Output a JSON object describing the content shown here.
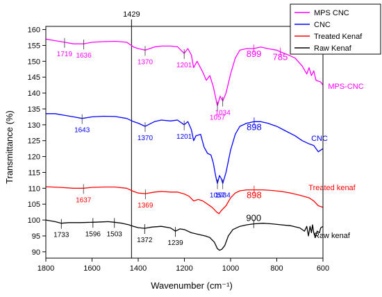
{
  "chart_data": {
    "type": "line",
    "xlabel": "Wavenumber (cm⁻¹)",
    "ylabel": "Transmittance (%)",
    "xlim": [
      1800,
      600
    ],
    "ylim": [
      88,
      161
    ],
    "x_ticks": [
      1800,
      1600,
      1400,
      1200,
      1000,
      800,
      600
    ],
    "y_ticks": [
      90,
      95,
      100,
      105,
      110,
      115,
      120,
      125,
      130,
      135,
      140,
      145,
      150,
      155,
      160
    ],
    "vline": {
      "x": 1429,
      "label": "1429"
    },
    "legend": {
      "placement": "top-right",
      "entries": [
        {
          "name": "MPS CNC",
          "color": "#ff00ff"
        },
        {
          "name": "CNC",
          "color": "#0000ff"
        },
        {
          "name": "Treated Kenaf",
          "color": "#ff0000"
        },
        {
          "name": "Raw Kenaf",
          "color": "#000000"
        }
      ]
    },
    "series": [
      {
        "name": "MPS CNC",
        "color": "#ff00ff",
        "points": [
          [
            1800,
            157
          ],
          [
            1760,
            156.5
          ],
          [
            1719,
            156
          ],
          [
            1680,
            155.5
          ],
          [
            1636,
            155.5
          ],
          [
            1600,
            156
          ],
          [
            1550,
            156.2
          ],
          [
            1500,
            156.3
          ],
          [
            1450,
            156
          ],
          [
            1420,
            154.5
          ],
          [
            1400,
            154
          ],
          [
            1370,
            153.5
          ],
          [
            1330,
            154.5
          ],
          [
            1300,
            154.8
          ],
          [
            1260,
            154.8
          ],
          [
            1230,
            154.6
          ],
          [
            1201,
            152.5
          ],
          [
            1185,
            154
          ],
          [
            1170,
            152
          ],
          [
            1160,
            148
          ],
          [
            1145,
            150
          ],
          [
            1120,
            146.5
          ],
          [
            1105,
            144
          ],
          [
            1090,
            145.5
          ],
          [
            1075,
            142
          ],
          [
            1057,
            136
          ],
          [
            1045,
            139
          ],
          [
            1034,
            137.5
          ],
          [
            1020,
            140
          ],
          [
            1000,
            146
          ],
          [
            980,
            151
          ],
          [
            960,
            153.5
          ],
          [
            930,
            154
          ],
          [
            899,
            154
          ],
          [
            870,
            154.5
          ],
          [
            840,
            154
          ],
          [
            800,
            153.5
          ],
          [
            785,
            153
          ],
          [
            750,
            152
          ],
          [
            720,
            151
          ],
          [
            690,
            148.5
          ],
          [
            670,
            146
          ],
          [
            660,
            148
          ],
          [
            650,
            145.5
          ],
          [
            640,
            147
          ],
          [
            630,
            144
          ],
          [
            610,
            143.5
          ],
          [
            600,
            142.5
          ]
        ]
      },
      {
        "name": "CNC",
        "color": "#0000ff",
        "points": [
          [
            1800,
            133.5
          ],
          [
            1760,
            133.5
          ],
          [
            1720,
            133
          ],
          [
            1680,
            132.5
          ],
          [
            1643,
            132
          ],
          [
            1600,
            132.5
          ],
          [
            1550,
            132.7
          ],
          [
            1500,
            132.6
          ],
          [
            1450,
            132
          ],
          [
            1420,
            131
          ],
          [
            1400,
            130.5
          ],
          [
            1370,
            129.5
          ],
          [
            1330,
            131
          ],
          [
            1300,
            131.5
          ],
          [
            1260,
            131.2
          ],
          [
            1230,
            131.5
          ],
          [
            1201,
            130
          ],
          [
            1185,
            131
          ],
          [
            1170,
            128.5
          ],
          [
            1160,
            125
          ],
          [
            1150,
            126.5
          ],
          [
            1130,
            127
          ],
          [
            1115,
            123
          ],
          [
            1100,
            121
          ],
          [
            1085,
            120.5
          ],
          [
            1075,
            118
          ],
          [
            1065,
            114
          ],
          [
            1057,
            111.5
          ],
          [
            1048,
            114
          ],
          [
            1040,
            113
          ],
          [
            1034,
            111.5
          ],
          [
            1020,
            115
          ],
          [
            1000,
            122
          ],
          [
            980,
            127
          ],
          [
            960,
            129.5
          ],
          [
            930,
            130.5
          ],
          [
            898,
            131
          ],
          [
            870,
            131
          ],
          [
            840,
            130.5
          ],
          [
            800,
            129.5
          ],
          [
            760,
            128
          ],
          [
            720,
            126.5
          ],
          [
            690,
            125
          ],
          [
            660,
            124
          ],
          [
            640,
            123.5
          ],
          [
            620,
            121.5
          ],
          [
            600,
            122.5
          ]
        ]
      },
      {
        "name": "Treated Kenaf",
        "color": "#ff0000",
        "points": [
          [
            1800,
            110.5
          ],
          [
            1740,
            110.3
          ],
          [
            1680,
            110
          ],
          [
            1637,
            110
          ],
          [
            1600,
            110.3
          ],
          [
            1550,
            110.4
          ],
          [
            1500,
            110.4
          ],
          [
            1450,
            110
          ],
          [
            1420,
            109
          ],
          [
            1400,
            108.5
          ],
          [
            1369,
            108.3
          ],
          [
            1330,
            108.8
          ],
          [
            1300,
            109
          ],
          [
            1260,
            108.8
          ],
          [
            1230,
            108.8
          ],
          [
            1200,
            108.2
          ],
          [
            1180,
            107.5
          ],
          [
            1160,
            106
          ],
          [
            1140,
            106.5
          ],
          [
            1120,
            106
          ],
          [
            1100,
            105
          ],
          [
            1080,
            104
          ],
          [
            1060,
            102.5
          ],
          [
            1050,
            102
          ],
          [
            1040,
            103
          ],
          [
            1020,
            104.5
          ],
          [
            1000,
            107
          ],
          [
            980,
            108.5
          ],
          [
            960,
            109.2
          ],
          [
            930,
            109.5
          ],
          [
            898,
            109.5
          ],
          [
            860,
            109.5
          ],
          [
            820,
            109.3
          ],
          [
            780,
            109
          ],
          [
            740,
            108.5
          ],
          [
            700,
            107.8
          ],
          [
            660,
            107
          ],
          [
            640,
            106
          ],
          [
            620,
            104.5
          ],
          [
            600,
            104
          ]
        ]
      },
      {
        "name": "Raw Kenaf",
        "color": "#000000",
        "points": [
          [
            1800,
            100
          ],
          [
            1760,
            99.5
          ],
          [
            1733,
            99
          ],
          [
            1700,
            99.2
          ],
          [
            1650,
            99.2
          ],
          [
            1596,
            99.3
          ],
          [
            1560,
            99.4
          ],
          [
            1530,
            99.5
          ],
          [
            1503,
            99.3
          ],
          [
            1470,
            99
          ],
          [
            1440,
            98.5
          ],
          [
            1420,
            98
          ],
          [
            1400,
            97.6
          ],
          [
            1372,
            97.4
          ],
          [
            1340,
            97.8
          ],
          [
            1300,
            98
          ],
          [
            1260,
            97.5
          ],
          [
            1239,
            96.5
          ],
          [
            1220,
            97.2
          ],
          [
            1200,
            97
          ],
          [
            1170,
            96
          ],
          [
            1140,
            95.5
          ],
          [
            1110,
            95
          ],
          [
            1090,
            94.5
          ],
          [
            1070,
            93
          ],
          [
            1057,
            91
          ],
          [
            1048,
            90.5
          ],
          [
            1038,
            90.8
          ],
          [
            1025,
            92
          ],
          [
            1010,
            95
          ],
          [
            990,
            97
          ],
          [
            960,
            98
          ],
          [
            930,
            98.5
          ],
          [
            900,
            98.8
          ],
          [
            860,
            99
          ],
          [
            820,
            98.8
          ],
          [
            780,
            98.5
          ],
          [
            740,
            98.2
          ],
          [
            700,
            97.5
          ],
          [
            680,
            96.5
          ],
          [
            670,
            98
          ],
          [
            663,
            95
          ],
          [
            656,
            98
          ],
          [
            650,
            96
          ],
          [
            645,
            98.5
          ],
          [
            640,
            96
          ],
          [
            633,
            94.5
          ],
          [
            625,
            96.5
          ],
          [
            615,
            96
          ],
          [
            610,
            97.5
          ],
          [
            600,
            98
          ]
        ]
      }
    ],
    "annotations": [
      {
        "text": "1719",
        "x": 1719,
        "y": 156,
        "series": "MPS CNC",
        "style": "small"
      },
      {
        "text": "1636",
        "x": 1636,
        "y": 155.5,
        "series": "MPS CNC",
        "style": "small"
      },
      {
        "text": "1370",
        "x": 1370,
        "y": 153.5,
        "series": "MPS CNC",
        "style": "small"
      },
      {
        "text": "1201",
        "x": 1201,
        "y": 152.5,
        "series": "MPS CNC",
        "style": "small"
      },
      {
        "text": "1057",
        "x": 1057,
        "y": 136,
        "series": "MPS CNC",
        "style": "small"
      },
      {
        "text": "1034",
        "x": 1034,
        "y": 137.5,
        "series": "MPS CNC",
        "style": "small"
      },
      {
        "text": "899",
        "x": 899,
        "y": 154,
        "series": "MPS CNC",
        "style": "big"
      },
      {
        "text": "785",
        "x": 785,
        "y": 153,
        "series": "MPS CNC",
        "style": "big"
      },
      {
        "text": "1643",
        "x": 1643,
        "y": 132,
        "series": "CNC",
        "style": "small"
      },
      {
        "text": "1370",
        "x": 1370,
        "y": 129.5,
        "series": "CNC",
        "style": "small"
      },
      {
        "text": "1201",
        "x": 1201,
        "y": 130,
        "series": "CNC",
        "style": "small"
      },
      {
        "text": "1057",
        "x": 1057,
        "y": 111.5,
        "series": "CNC",
        "style": "small"
      },
      {
        "text": "1034",
        "x": 1034,
        "y": 111.5,
        "series": "CNC",
        "style": "small"
      },
      {
        "text": "898",
        "x": 898,
        "y": 131,
        "series": "CNC",
        "style": "big"
      },
      {
        "text": "1637",
        "x": 1637,
        "y": 110,
        "series": "Treated Kenaf",
        "style": "small"
      },
      {
        "text": "1369",
        "x": 1369,
        "y": 108.3,
        "series": "Treated Kenaf",
        "style": "small"
      },
      {
        "text": "898",
        "x": 898,
        "y": 109.5,
        "series": "Treated Kenaf",
        "style": "big"
      },
      {
        "text": "1733",
        "x": 1733,
        "y": 99,
        "series": "Raw Kenaf",
        "style": "small"
      },
      {
        "text": "1596",
        "x": 1596,
        "y": 99.3,
        "series": "Raw Kenaf",
        "style": "small"
      },
      {
        "text": "1503",
        "x": 1503,
        "y": 99.3,
        "series": "Raw Kenaf",
        "style": "small"
      },
      {
        "text": "1372",
        "x": 1372,
        "y": 97.4,
        "series": "Raw Kenaf",
        "style": "small"
      },
      {
        "text": "1239",
        "x": 1239,
        "y": 96.5,
        "series": "Raw Kenaf",
        "style": "small"
      },
      {
        "text": "900",
        "x": 900,
        "y": 98.8,
        "series": "Raw Kenaf",
        "style": "big"
      }
    ],
    "curve_labels": [
      {
        "text": "MPS-CNC",
        "series": "MPS CNC",
        "color": "#ff00ff"
      },
      {
        "text": "CNC",
        "series": "CNC",
        "color": "#0000ff"
      },
      {
        "text": "Treated kenaf",
        "series": "Treated Kenaf",
        "color": "#ff0000"
      },
      {
        "text": "Raw kenaf",
        "series": "Raw Kenaf",
        "color": "#000000"
      }
    ]
  }
}
